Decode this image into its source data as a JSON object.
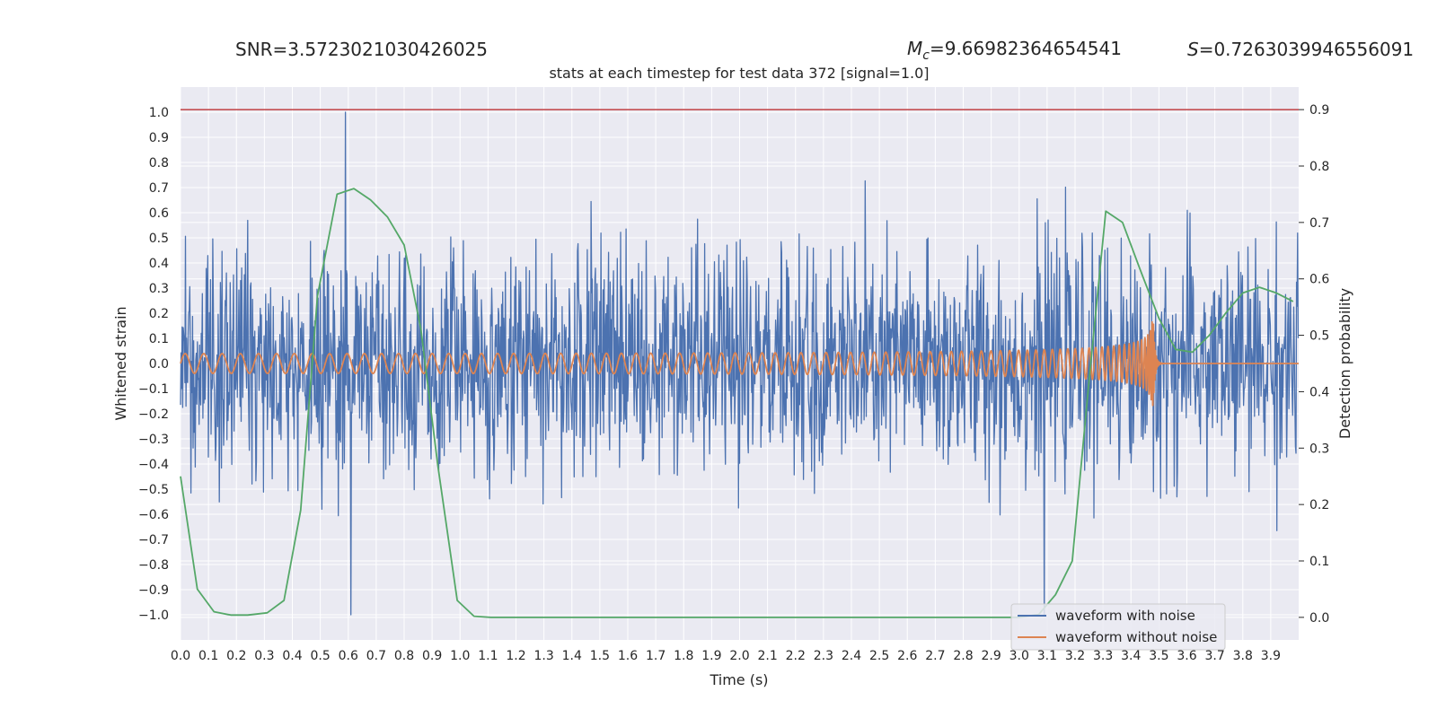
{
  "chart_data": {
    "type": "line",
    "title": "stats at each timestep for test data 372 [signal=1.0]",
    "top_labels": {
      "snr": "SNR=3.5723021030426025",
      "mc_symbol": "M",
      "mc_sub": "c",
      "mc_value": "=9.66982364654541",
      "s_symbol": "S",
      "s_value": "=0.7263039946556091"
    },
    "xlabel": "Time (s)",
    "ylabel": "Whitened strain",
    "y2label": "Detection probability",
    "xlim": [
      0.0,
      4.0
    ],
    "ylim": [
      -1.1,
      1.1
    ],
    "y2lim": [
      -0.04,
      0.94
    ],
    "x_ticks": [
      "0.0",
      "0.1",
      "0.2",
      "0.3",
      "0.4",
      "0.5",
      "0.6",
      "0.7",
      "0.8",
      "0.9",
      "1.0",
      "1.1",
      "1.2",
      "1.3",
      "1.4",
      "1.5",
      "1.6",
      "1.7",
      "1.8",
      "1.9",
      "2.0",
      "2.1",
      "2.2",
      "2.3",
      "2.4",
      "2.5",
      "2.6",
      "2.7",
      "2.8",
      "2.9",
      "3.0",
      "3.1",
      "3.2",
      "3.3",
      "3.4",
      "3.5",
      "3.6",
      "3.7",
      "3.8",
      "3.9"
    ],
    "y_ticks": [
      "1.0",
      "0.9",
      "0.8",
      "0.7",
      "0.6",
      "0.5",
      "0.4",
      "0.3",
      "0.2",
      "0.1",
      "0.0",
      "−0.1",
      "−0.2",
      "−0.3",
      "−0.4",
      "−0.5",
      "−0.6",
      "−0.7",
      "−0.8",
      "−0.9",
      "−1.0"
    ],
    "y2_ticks": [
      "0.9",
      "0.8",
      "0.7",
      "0.6",
      "0.5",
      "0.4",
      "0.3",
      "0.2",
      "0.1",
      "0.0"
    ],
    "threshold": {
      "y2": 0.9,
      "color": "#c44e52"
    },
    "grid": true,
    "legend_position": "lower-right",
    "series": [
      {
        "name": "waveform with noise",
        "color": "#4c72b0",
        "axis": "left",
        "style": "noise",
        "amplitude": 0.4,
        "peaks": [
          [
            0.59,
            1.0
          ],
          [
            0.61,
            -1.0
          ],
          [
            3.09,
            -1.0
          ]
        ]
      },
      {
        "name": "waveform without noise",
        "color": "#dd8452",
        "axis": "left",
        "style": "chirp",
        "merger_time": 3.48,
        "peak_amplitude": 0.17
      },
      {
        "name": "",
        "color": "#55a868",
        "axis": "right",
        "style": "line",
        "x": [
          0.0,
          0.06,
          0.12,
          0.18,
          0.24,
          0.31,
          0.37,
          0.43,
          0.49,
          0.56,
          0.62,
          0.68,
          0.74,
          0.8,
          0.86,
          0.92,
          0.99,
          1.05,
          1.11,
          1.5,
          2.0,
          2.5,
          3.0,
          3.07,
          3.13,
          3.19,
          3.25,
          3.31,
          3.37,
          3.43,
          3.5,
          3.56,
          3.62,
          3.68,
          3.74,
          3.8,
          3.86,
          3.92,
          3.98
        ],
        "y": [
          0.25,
          0.05,
          0.01,
          0.004,
          0.004,
          0.008,
          0.03,
          0.19,
          0.57,
          0.75,
          0.76,
          0.74,
          0.71,
          0.66,
          0.51,
          0.27,
          0.03,
          0.002,
          0.0,
          0.0,
          0.0,
          0.0,
          0.0,
          0.005,
          0.04,
          0.1,
          0.42,
          0.72,
          0.7,
          0.62,
          0.53,
          0.475,
          0.47,
          0.5,
          0.54,
          0.575,
          0.585,
          0.575,
          0.56
        ]
      }
    ]
  }
}
